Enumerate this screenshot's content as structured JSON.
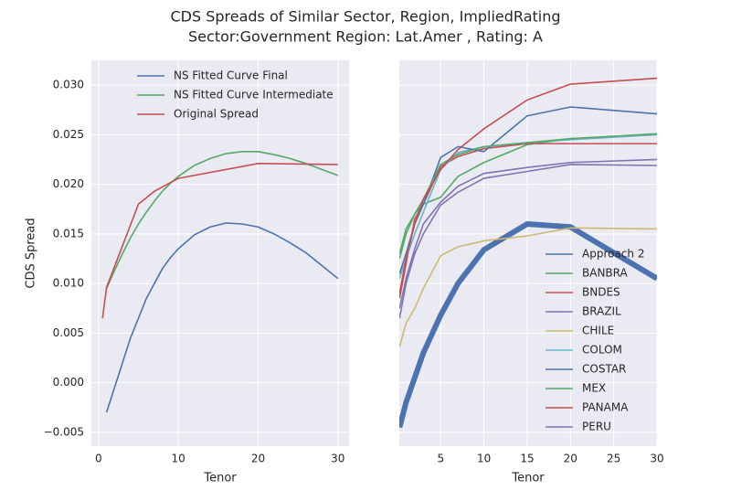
{
  "title": [
    "CDS Spreads of Similar Sector, Region, ImpliedRating",
    "Sector:Government Region: Lat.Amer , Rating: A"
  ],
  "chart_data": [
    {
      "type": "line",
      "xlabel": "Tenor",
      "ylabel": "CDS Spread",
      "xlim": [
        -0.9,
        31.4
      ],
      "ylim": [
        -0.0064,
        0.0325
      ],
      "xticks": [
        0,
        10,
        20,
        30
      ],
      "yticks": [
        {
          "value": -0.005,
          "label": "−0.005"
        },
        {
          "value": 0,
          "label": "0.000"
        },
        {
          "value": 0.005,
          "label": "0.005"
        },
        {
          "value": 0.01,
          "label": "0.010"
        },
        {
          "value": 0.015,
          "label": "0.015"
        },
        {
          "value": 0.02,
          "label": "0.020"
        },
        {
          "value": 0.025,
          "label": "0.025"
        },
        {
          "value": 0.03,
          "label": "0.030"
        }
      ],
      "ytick_labels": true,
      "grid": true,
      "legend": "upper center",
      "series": [
        {
          "name": "NS Fitted Curve Final",
          "color": "#4c72b0",
          "width": 1.6,
          "x": [
            1,
            2,
            3,
            4,
            5,
            6,
            7,
            8,
            9,
            10,
            12,
            14,
            16,
            18,
            20,
            22,
            24,
            26,
            28,
            30
          ],
          "values": [
            -0.003,
            -0.0005,
            0.002,
            0.0045,
            0.0065,
            0.0085,
            0.01,
            0.0115,
            0.0126,
            0.0135,
            0.0149,
            0.0157,
            0.0161,
            0.016,
            0.0157,
            0.015,
            0.0141,
            0.0131,
            0.0118,
            0.0105
          ]
        },
        {
          "name": "NS Fitted Curve Intermediate",
          "color": "#55a868",
          "width": 1.6,
          "x": [
            1,
            2,
            3,
            4,
            5,
            6,
            7,
            8,
            9,
            10,
            12,
            14,
            16,
            18,
            20,
            22,
            24,
            26,
            28,
            30
          ],
          "values": [
            0.0095,
            0.0113,
            0.013,
            0.0146,
            0.016,
            0.0172,
            0.0183,
            0.0193,
            0.0201,
            0.0208,
            0.0219,
            0.0226,
            0.0231,
            0.0233,
            0.0233,
            0.023,
            0.0226,
            0.0221,
            0.0215,
            0.0209
          ]
        },
        {
          "name": "Original Spread",
          "color": "#c44e52",
          "width": 1.6,
          "x": [
            0.5,
            1,
            5,
            7,
            10,
            20,
            30
          ],
          "values": [
            0.0065,
            0.0096,
            0.018,
            0.0193,
            0.0206,
            0.0221,
            0.022
          ]
        }
      ]
    },
    {
      "type": "line",
      "xlabel": "Tenor",
      "xlim": [
        0.22,
        30
      ],
      "ylim": [
        -0.0064,
        0.0325
      ],
      "xticks": [
        5,
        10,
        15,
        20,
        25,
        30
      ],
      "yticks": [
        -0.005,
        0,
        0.005,
        0.01,
        0.015,
        0.02,
        0.025,
        0.03
      ],
      "ytick_labels": false,
      "grid": true,
      "legend": "lower right",
      "series": [
        {
          "name": "Approach 2",
          "color": "#4c72b0",
          "width": 6,
          "x": [
            0.25,
            1,
            2,
            3,
            5,
            7,
            10,
            15,
            20,
            30
          ],
          "values": [
            -0.0045,
            -0.002,
            0.0005,
            0.003,
            0.0068,
            0.01,
            0.0134,
            0.016,
            0.0157,
            0.0105
          ]
        },
        {
          "name": "BANBRA",
          "color": "#55a868",
          "width": 1.6,
          "x": [
            0.25,
            1,
            2,
            3,
            5,
            7,
            10,
            15,
            20,
            30
          ],
          "values": [
            0.013,
            0.0155,
            0.017,
            0.018,
            0.0187,
            0.0208,
            0.0222,
            0.024,
            0.0246,
            0.025
          ]
        },
        {
          "name": "BNDES",
          "color": "#c44e52",
          "width": 1.6,
          "x": [
            0.25,
            1,
            2,
            3,
            5,
            7,
            10,
            15,
            20,
            30
          ],
          "values": [
            0.0085,
            0.012,
            0.0165,
            0.018,
            0.0218,
            0.0228,
            0.0236,
            0.0241,
            0.0241,
            0.0241
          ]
        },
        {
          "name": "BRAZIL",
          "color": "#8172b2",
          "width": 1.6,
          "x": [
            0.25,
            1,
            2,
            3,
            5,
            7,
            10,
            15,
            20,
            30
          ],
          "values": [
            0.0065,
            0.01,
            0.013,
            0.015,
            0.0179,
            0.0192,
            0.0206,
            0.0213,
            0.022,
            0.0219
          ]
        },
        {
          "name": "CHILE",
          "color": "#ccb974",
          "width": 1.6,
          "x": [
            0.25,
            1,
            2,
            3,
            5,
            7,
            10,
            15,
            20,
            30
          ],
          "values": [
            0.0036,
            0.006,
            0.0075,
            0.0095,
            0.0128,
            0.0137,
            0.0143,
            0.0148,
            0.0156,
            0.0155
          ]
        },
        {
          "name": "COLOM",
          "color": "#64b5cd",
          "width": 1.6,
          "x": [
            0.25,
            1,
            2,
            3,
            5,
            7,
            10,
            15,
            20,
            30
          ],
          "values": [
            0.0105,
            0.0125,
            0.015,
            0.0172,
            0.0215,
            0.0232,
            0.0238,
            0.0242,
            0.0245,
            0.025
          ]
        },
        {
          "name": "COSTAR",
          "color": "#4c72b0",
          "width": 1.6,
          "x": [
            0.25,
            1,
            2,
            3,
            5,
            7,
            10,
            15,
            20,
            30
          ],
          "values": [
            0.011,
            0.013,
            0.016,
            0.018,
            0.0227,
            0.0238,
            0.0233,
            0.0269,
            0.0278,
            0.0271
          ]
        },
        {
          "name": "MEX",
          "color": "#55a868",
          "width": 1.6,
          "x": [
            0.25,
            1,
            2,
            3,
            5,
            7,
            10,
            15,
            20,
            30
          ],
          "values": [
            0.0125,
            0.015,
            0.017,
            0.0185,
            0.022,
            0.023,
            0.0238,
            0.0242,
            0.0246,
            0.0251
          ]
        },
        {
          "name": "PANAMA",
          "color": "#c44e52",
          "width": 1.6,
          "x": [
            0.25,
            1,
            2,
            3,
            5,
            7,
            10,
            15,
            20,
            30
          ],
          "values": [
            0.009,
            0.0125,
            0.016,
            0.0185,
            0.0215,
            0.0235,
            0.0256,
            0.0285,
            0.0301,
            0.0307
          ]
        },
        {
          "name": "PERU",
          "color": "#8172b2",
          "width": 1.6,
          "x": [
            0.25,
            1,
            2,
            3,
            5,
            7,
            10,
            15,
            20,
            30
          ],
          "values": [
            0.0075,
            0.0105,
            0.0135,
            0.016,
            0.0182,
            0.0198,
            0.0211,
            0.0217,
            0.0222,
            0.0225
          ]
        }
      ]
    }
  ]
}
